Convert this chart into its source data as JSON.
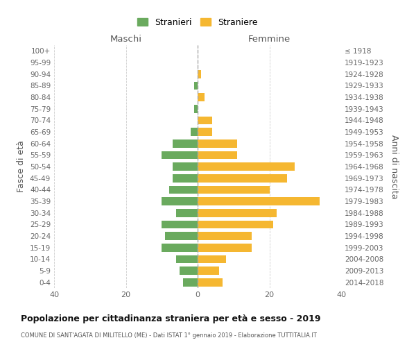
{
  "age_groups": [
    "100+",
    "95-99",
    "90-94",
    "85-89",
    "80-84",
    "75-79",
    "70-74",
    "65-69",
    "60-64",
    "55-59",
    "50-54",
    "45-49",
    "40-44",
    "35-39",
    "30-34",
    "25-29",
    "20-24",
    "15-19",
    "10-14",
    "5-9",
    "0-4"
  ],
  "birth_years": [
    "≤ 1918",
    "1919-1923",
    "1924-1928",
    "1929-1933",
    "1934-1938",
    "1939-1943",
    "1944-1948",
    "1949-1953",
    "1954-1958",
    "1959-1963",
    "1964-1968",
    "1969-1973",
    "1974-1978",
    "1979-1983",
    "1984-1988",
    "1989-1993",
    "1994-1998",
    "1999-2003",
    "2004-2008",
    "2009-2013",
    "2014-2018"
  ],
  "maschi": [
    0,
    0,
    0,
    1,
    0,
    1,
    0,
    2,
    7,
    10,
    7,
    7,
    8,
    10,
    6,
    10,
    9,
    10,
    6,
    5,
    4
  ],
  "femmine": [
    0,
    0,
    1,
    0,
    2,
    0,
    4,
    4,
    11,
    11,
    27,
    25,
    20,
    34,
    22,
    21,
    15,
    15,
    8,
    6,
    7
  ],
  "color_maschi": "#6aaa5e",
  "color_femmine": "#f5b731",
  "title": "Popolazione per cittadinanza straniera per età e sesso - 2019",
  "subtitle": "COMUNE DI SANT'AGATA DI MILITELLO (ME) - Dati ISTAT 1° gennaio 2019 - Elaborazione TUTTITALIA.IT",
  "xlabel_left": "Maschi",
  "xlabel_right": "Femmine",
  "ylabel_left": "Fasce di età",
  "ylabel_right": "Anni di nascita",
  "legend_maschi": "Stranieri",
  "legend_femmine": "Straniere",
  "xlim": 40,
  "background_color": "#ffffff",
  "grid_color": "#cccccc"
}
